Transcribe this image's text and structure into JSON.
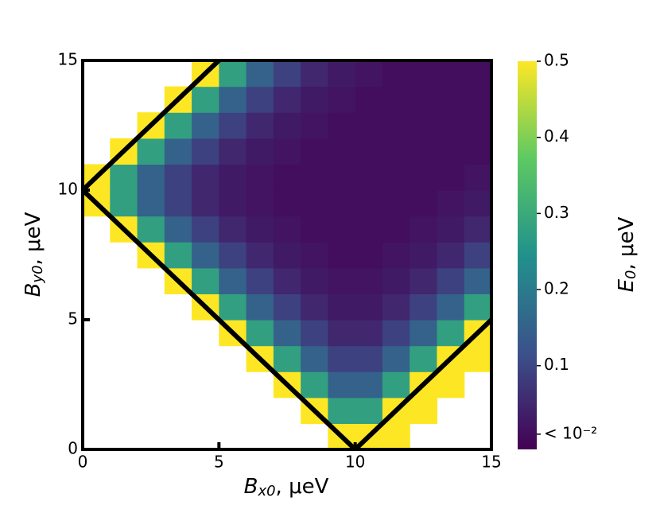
{
  "chart_data": {
    "type": "heatmap",
    "xlabel": {
      "symbol": "B",
      "sub": "x0",
      "unit": ", μeV"
    },
    "ylabel": {
      "symbol": "B",
      "sub": "y0",
      "unit": ", μeV"
    },
    "colorbar_label": {
      "symbol": "E",
      "sub": "0",
      "unit": ", μeV"
    },
    "colormap": "viridis",
    "xlim": [
      0,
      15
    ],
    "ylim": [
      0,
      15
    ],
    "xticks": [
      0,
      5,
      10,
      15
    ],
    "yticks": [
      0,
      5,
      10,
      15
    ],
    "clim": [
      -0.01,
      0.5
    ],
    "cticks": [
      {
        "value": 0.01,
        "label": "< 10⁻²"
      },
      0.1,
      0.2,
      0.3,
      0.4,
      0.5
    ],
    "xbins": [
      0,
      1,
      2,
      3,
      4,
      5,
      6,
      7,
      8,
      9,
      10,
      11,
      12,
      13,
      14,
      15
    ],
    "ybins": [
      0,
      1,
      2,
      3,
      4,
      5,
      6,
      7,
      8,
      9,
      10,
      11,
      12,
      13,
      14,
      15
    ],
    "z": [
      [
        null,
        null,
        null,
        null,
        null,
        null,
        null,
        null,
        null,
        0.5,
        0.5,
        0.5,
        null,
        null,
        null
      ],
      [
        null,
        null,
        null,
        null,
        null,
        null,
        null,
        null,
        0.5,
        0.28,
        0.28,
        0.5,
        0.5,
        null,
        null
      ],
      [
        null,
        null,
        null,
        null,
        null,
        null,
        null,
        0.5,
        0.28,
        0.15,
        0.15,
        0.28,
        0.5,
        0.5,
        null
      ],
      [
        null,
        null,
        null,
        null,
        null,
        null,
        0.5,
        0.28,
        0.15,
        0.09,
        0.09,
        0.15,
        0.28,
        0.5,
        0.5
      ],
      [
        null,
        null,
        null,
        null,
        null,
        0.5,
        0.28,
        0.15,
        0.09,
        0.05,
        0.05,
        0.09,
        0.15,
        0.28,
        0.5
      ],
      [
        null,
        null,
        null,
        null,
        0.5,
        0.28,
        0.15,
        0.09,
        0.05,
        0.03,
        0.03,
        0.05,
        0.09,
        0.15,
        0.28
      ],
      [
        null,
        null,
        null,
        0.5,
        0.28,
        0.15,
        0.09,
        0.05,
        0.03,
        0.02,
        0.02,
        0.03,
        0.05,
        0.09,
        0.15
      ],
      [
        null,
        null,
        0.5,
        0.28,
        0.15,
        0.09,
        0.05,
        0.03,
        0.02,
        0.01,
        0.01,
        0.02,
        0.03,
        0.05,
        0.09
      ],
      [
        null,
        0.5,
        0.28,
        0.15,
        0.09,
        0.05,
        0.03,
        0.02,
        0.01,
        0.01,
        0.01,
        0.01,
        0.02,
        0.03,
        0.05
      ],
      [
        0.5,
        0.28,
        0.15,
        0.09,
        0.05,
        0.03,
        0.02,
        0.01,
        0.01,
        0.01,
        0.01,
        0.01,
        0.01,
        0.02,
        0.03
      ],
      [
        0.5,
        0.28,
        0.15,
        0.09,
        0.05,
        0.03,
        0.02,
        0.01,
        0.01,
        0.01,
        0.01,
        0.01,
        0.01,
        0.01,
        0.02
      ],
      [
        null,
        0.5,
        0.28,
        0.15,
        0.09,
        0.05,
        0.03,
        0.02,
        0.01,
        0.01,
        0.01,
        0.01,
        0.01,
        0.01,
        0.01
      ],
      [
        null,
        null,
        0.5,
        0.28,
        0.15,
        0.09,
        0.05,
        0.03,
        0.02,
        0.01,
        0.01,
        0.01,
        0.01,
        0.01,
        0.01
      ],
      [
        null,
        null,
        null,
        0.5,
        0.28,
        0.15,
        0.09,
        0.05,
        0.03,
        0.02,
        0.01,
        0.01,
        0.01,
        0.01,
        0.01
      ],
      [
        null,
        null,
        null,
        null,
        0.5,
        0.28,
        0.15,
        0.09,
        0.05,
        0.03,
        0.02,
        0.01,
        0.01,
        0.01,
        0.01
      ]
    ],
    "boundaries": [
      {
        "x": [
          0,
          5
        ],
        "y": [
          10,
          15
        ]
      },
      {
        "x": [
          0,
          10
        ],
        "y": [
          10,
          0
        ]
      },
      {
        "x": [
          10,
          15
        ],
        "y": [
          0,
          5
        ]
      }
    ]
  }
}
